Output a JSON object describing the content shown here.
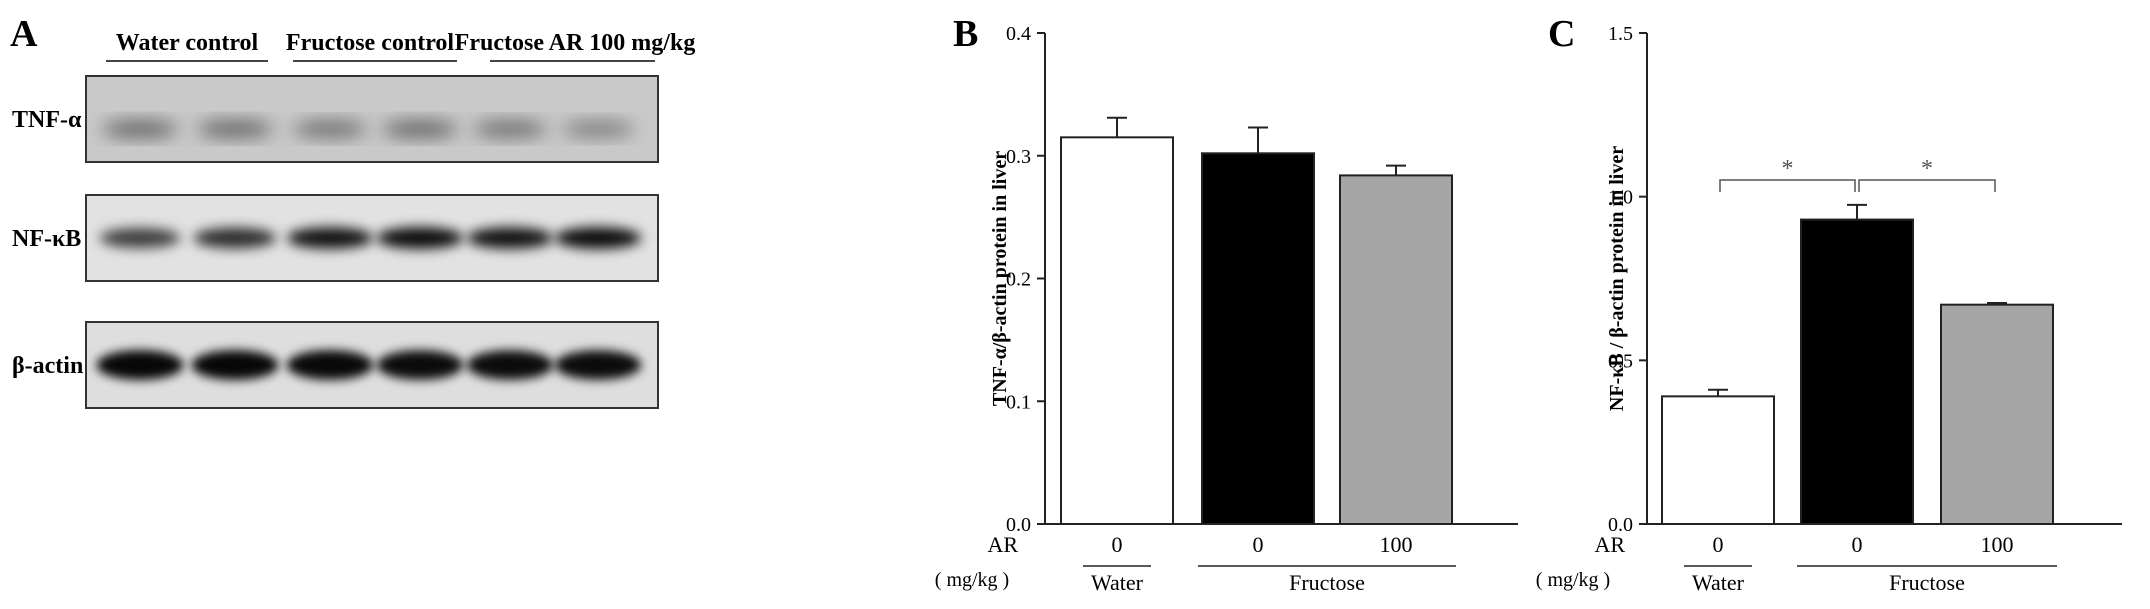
{
  "panel_a": {
    "label": "A",
    "groups": [
      "Water control",
      "Fructose control",
      "Fructose AR 100 mg/kg"
    ],
    "rows": [
      {
        "name": "TNF-α",
        "intensities": [
          0.55,
          0.55,
          0.5,
          0.55,
          0.5,
          0.42
        ],
        "blur": 9,
        "bg": "#c9c9c9"
      },
      {
        "name": "NF-κB",
        "intensities": [
          0.72,
          0.8,
          0.92,
          0.95,
          0.92,
          0.95
        ],
        "blur": 6,
        "bg": "#e2e2e2"
      },
      {
        "name": "β-actin",
        "intensities": [
          0.97,
          0.97,
          0.96,
          0.95,
          0.95,
          0.95
        ],
        "blur": 5,
        "bg": "#dedede"
      }
    ]
  },
  "chart_data": [
    {
      "panel": "B",
      "type": "bar",
      "ylabel": "TNF-α/β-actin protein in liver",
      "ylim": [
        0,
        0.4
      ],
      "yticks": [
        "0.0",
        "0.1",
        "0.2",
        "0.3",
        "0.4"
      ],
      "x_row_label": "AR",
      "x_unit_label": "( mg/kg )",
      "categories": [
        "0",
        "0",
        "100"
      ],
      "values": [
        0.315,
        0.302,
        0.284
      ],
      "errors": [
        0.016,
        0.021,
        0.008
      ],
      "colors": [
        "#ffffff",
        "#000000",
        "#a6a6a6"
      ],
      "groups": [
        {
          "label": "Water",
          "span": [
            0,
            0
          ]
        },
        {
          "label": "Fructose",
          "span": [
            1,
            2
          ]
        }
      ],
      "significance": []
    },
    {
      "panel": "C",
      "type": "bar",
      "ylabel": "NF-κB / β-actin protein in liver",
      "ylim": [
        0,
        1.5
      ],
      "yticks": [
        "0.0",
        "0.5",
        "1.0",
        "1.5"
      ],
      "x_row_label": "AR",
      "x_unit_label": "( mg/kg )",
      "categories": [
        "0",
        "0",
        "100"
      ],
      "values": [
        0.39,
        0.93,
        0.67
      ],
      "errors": [
        0.02,
        0.045,
        0.005
      ],
      "colors": [
        "#ffffff",
        "#000000",
        "#a6a6a6"
      ],
      "groups": [
        {
          "label": "Water",
          "span": [
            0,
            0
          ]
        },
        {
          "label": "Fructose",
          "span": [
            1,
            2
          ]
        }
      ],
      "significance": [
        {
          "from": 0,
          "to": 1,
          "label": "*"
        },
        {
          "from": 1,
          "to": 2,
          "label": "*"
        }
      ]
    }
  ]
}
